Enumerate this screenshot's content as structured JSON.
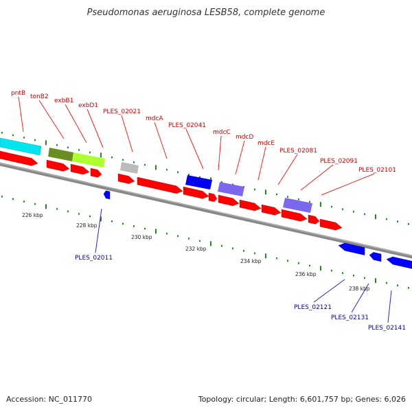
{
  "title": "Pseudomonas aeruginosa LESB58, complete genome",
  "footer": {
    "accession": "Accession: NC_011770",
    "summary": "Topology: circular; Length: 6,601,757 bp; Genes: 6,026"
  },
  "colors": {
    "forward_gene": "#ff0000",
    "reverse_gene": "#0000ff",
    "label_forward": "#cc0000",
    "label_reverse": "#0000aa",
    "tick": "#1a8f1a",
    "backbone": "#888888"
  },
  "scale_labels": [
    "226 kbp",
    "228 kbp",
    "230 kbp",
    "232 kbp",
    "234 kbp",
    "236 kbp",
    "238 kbp"
  ],
  "feature_labels_top": [
    "pntB",
    "tonB2",
    "exbB1",
    "exbD1",
    "PLES_02021",
    "mdcA",
    "PLES_02041",
    "mdcC",
    "mdcD",
    "mdcE",
    "PLES_02081",
    "PLES_02091",
    "PLES_02101"
  ],
  "feature_labels_bottom": [
    "PLES_02011",
    "PLES_02121",
    "PLES_02131",
    "PLES_02141"
  ]
}
